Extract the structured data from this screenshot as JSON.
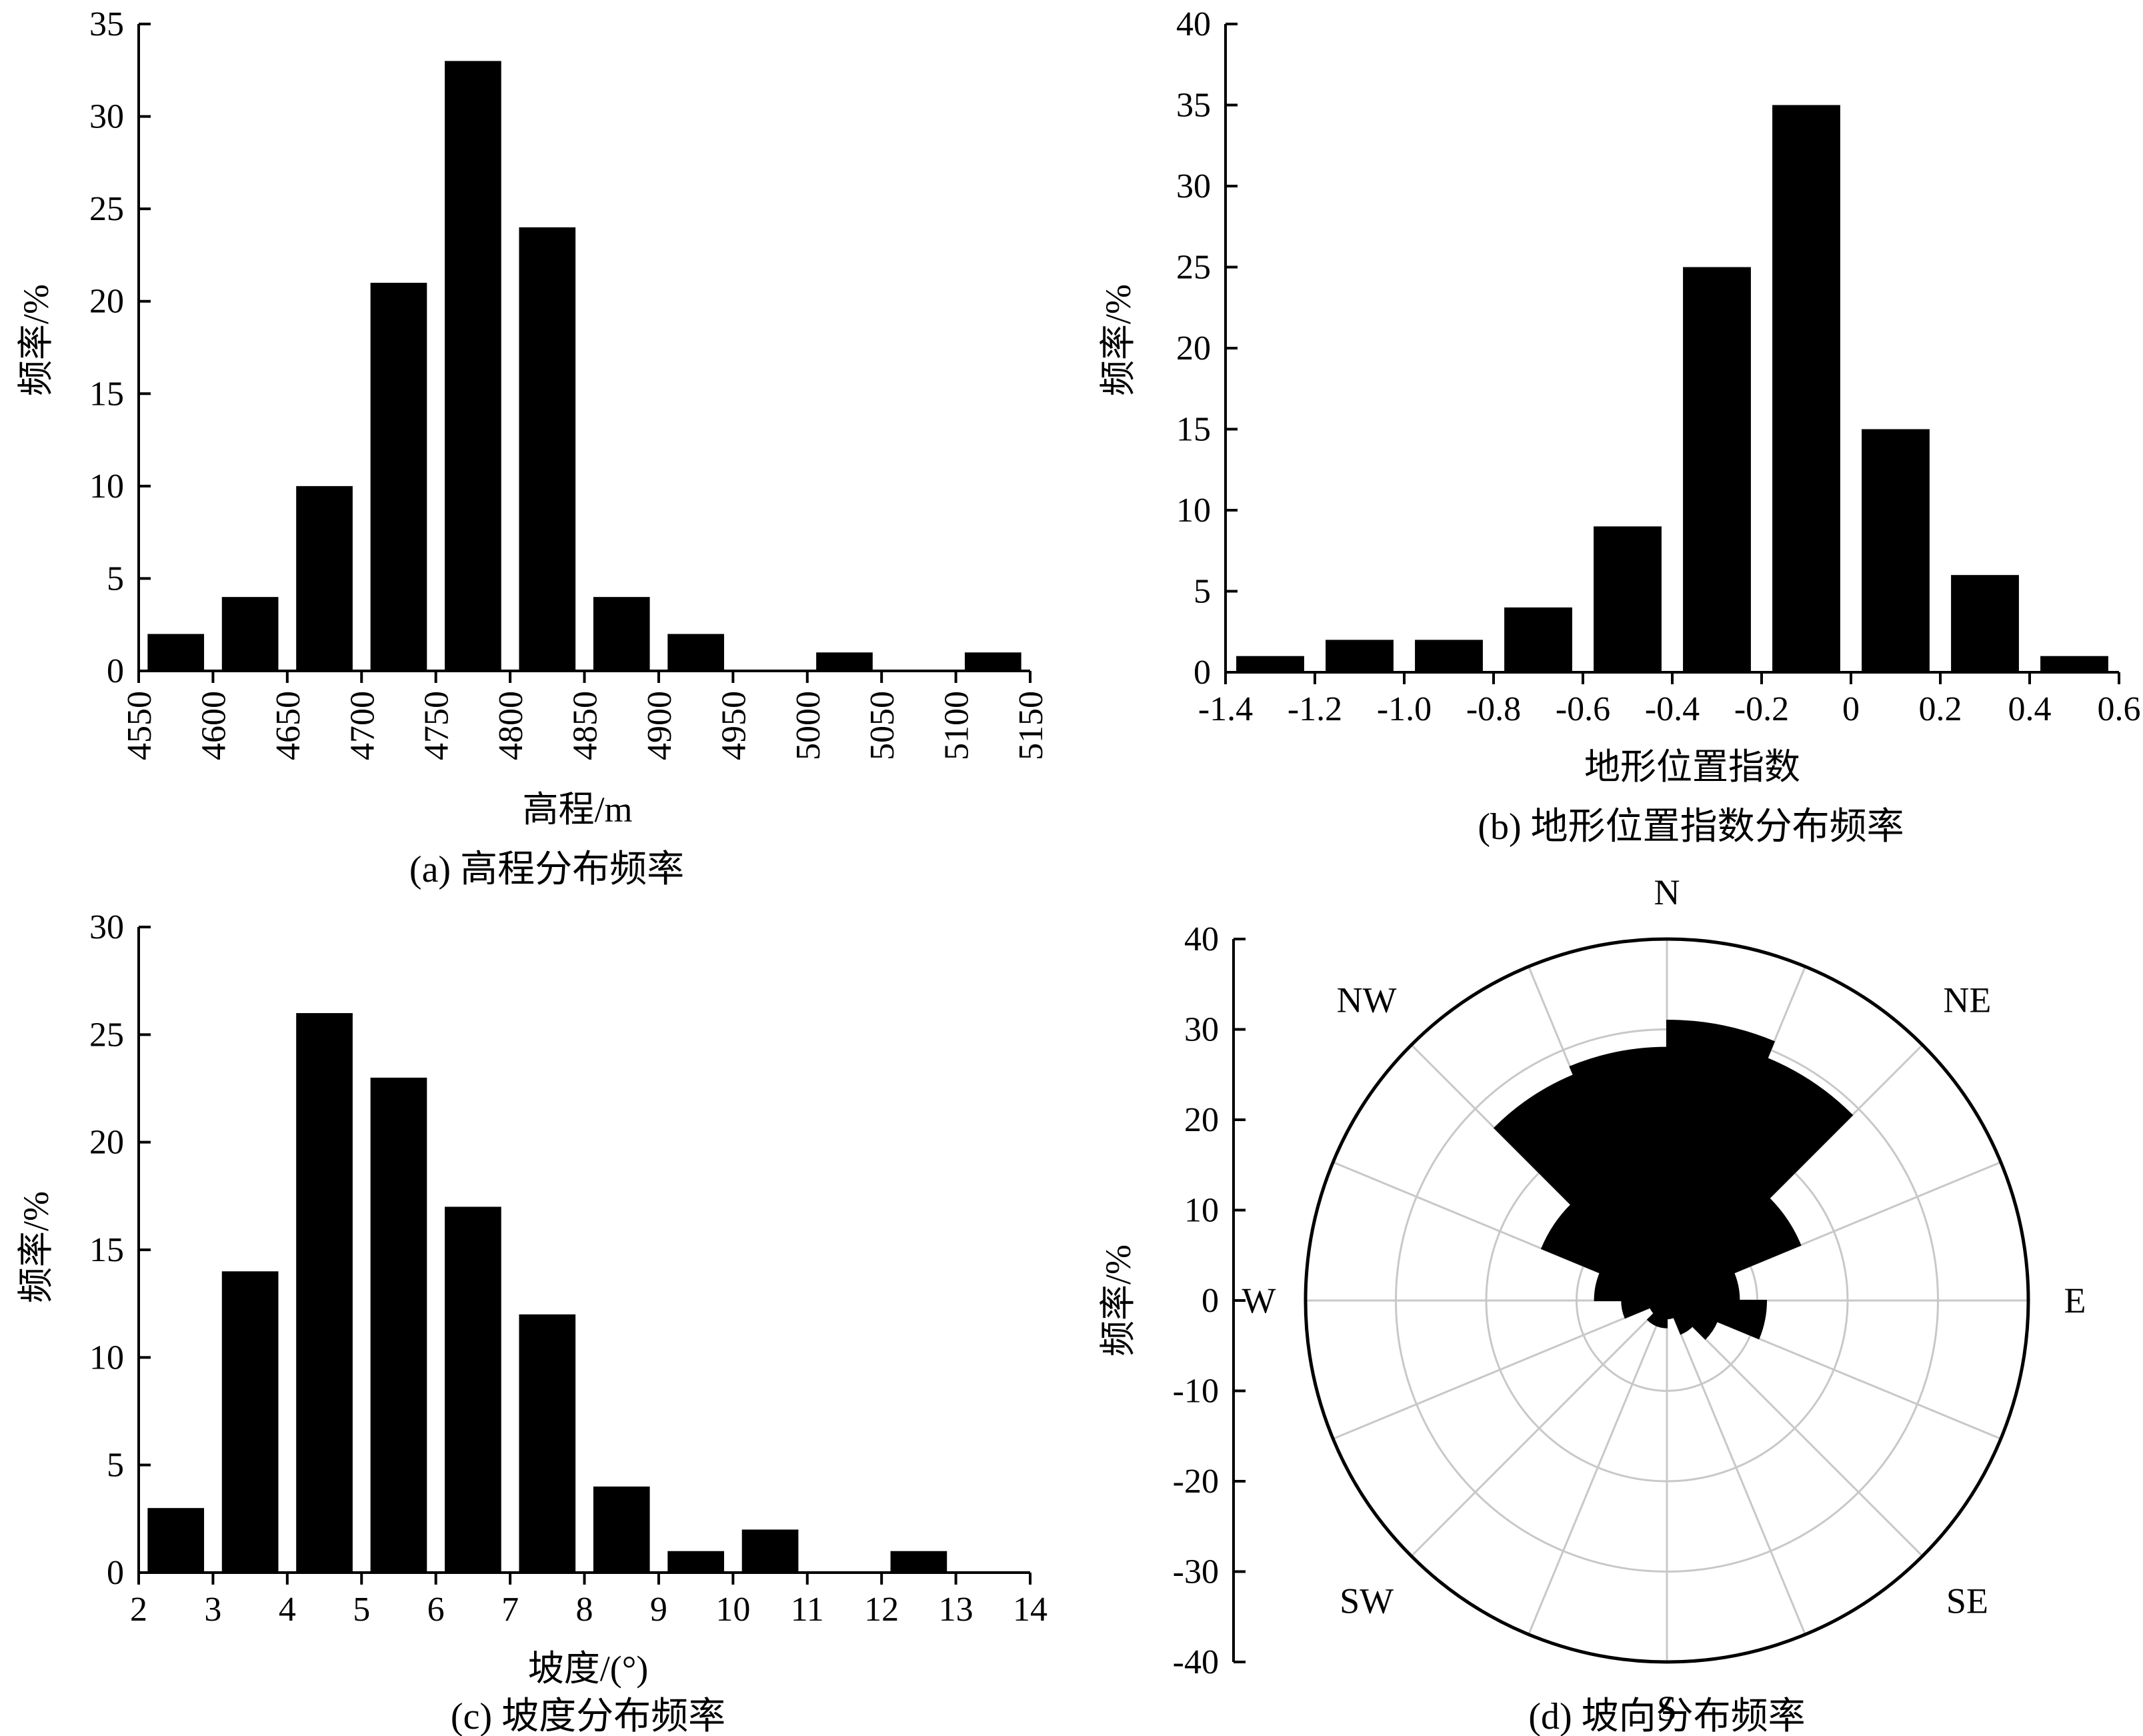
{
  "colors": {
    "bar": "#000000",
    "axis": "#000000",
    "grid": "#c8c8c8",
    "background": "#ffffff"
  },
  "chart_data": [
    {
      "id": "a",
      "type": "bar",
      "caption": "(a) 高程分布频率",
      "xlabel": "高程/m",
      "ylabel": "频率/%",
      "ylim": [
        0,
        35
      ],
      "yticks": [
        "0",
        "5",
        "10",
        "15",
        "20",
        "25",
        "30",
        "35"
      ],
      "xlim": [
        4550,
        5150
      ],
      "xticks": [
        "4550",
        "4600",
        "4650",
        "4700",
        "4750",
        "4800",
        "4850",
        "4900",
        "4950",
        "5000",
        "5050",
        "5100",
        "5150"
      ],
      "bin_width": 50,
      "bars": [
        {
          "x": 4575,
          "value": 2
        },
        {
          "x": 4625,
          "value": 4
        },
        {
          "x": 4675,
          "value": 10
        },
        {
          "x": 4725,
          "value": 21
        },
        {
          "x": 4775,
          "value": 33
        },
        {
          "x": 4825,
          "value": 24
        },
        {
          "x": 4875,
          "value": 4
        },
        {
          "x": 4925,
          "value": 2
        },
        {
          "x": 4975,
          "value": 0
        },
        {
          "x": 5025,
          "value": 1
        },
        {
          "x": 5075,
          "value": 0
        },
        {
          "x": 5125,
          "value": 1
        }
      ]
    },
    {
      "id": "b",
      "type": "bar",
      "caption": "(b) 地形位置指数分布频率",
      "xlabel": "地形位置指数",
      "ylabel": "频率/%",
      "ylim": [
        0,
        40
      ],
      "yticks": [
        "0",
        "5",
        "10",
        "15",
        "20",
        "25",
        "30",
        "35",
        "40"
      ],
      "xlim": [
        -1.4,
        0.6
      ],
      "xticks": [
        "-1.4",
        "-1.2",
        "-1.0",
        "-0.8",
        "-0.6",
        "-0.4",
        "-0.2",
        "0",
        "0.2",
        "0.4",
        "0.6"
      ],
      "bin_width": 0.2,
      "bars": [
        {
          "x": -1.3,
          "value": 1
        },
        {
          "x": -1.1,
          "value": 2
        },
        {
          "x": -0.9,
          "value": 2
        },
        {
          "x": -0.7,
          "value": 4
        },
        {
          "x": -0.5,
          "value": 9
        },
        {
          "x": -0.3,
          "value": 25
        },
        {
          "x": -0.1,
          "value": 35
        },
        {
          "x": 0.1,
          "value": 15
        },
        {
          "x": 0.3,
          "value": 6
        },
        {
          "x": 0.5,
          "value": 1
        }
      ]
    },
    {
      "id": "c",
      "type": "bar",
      "caption": "(c) 坡度分布频率",
      "xlabel": "坡度/(°)",
      "ylabel": "频率/%",
      "ylim": [
        0,
        30
      ],
      "yticks": [
        "0",
        "5",
        "10",
        "15",
        "20",
        "25",
        "30"
      ],
      "xlim": [
        2,
        14
      ],
      "xticks": [
        "2",
        "3",
        "4",
        "5",
        "6",
        "7",
        "8",
        "9",
        "10",
        "11",
        "12",
        "13",
        "14"
      ],
      "bin_width": 1,
      "bars": [
        {
          "x": 2.5,
          "value": 3
        },
        {
          "x": 3.5,
          "value": 14
        },
        {
          "x": 4.5,
          "value": 26
        },
        {
          "x": 5.5,
          "value": 23
        },
        {
          "x": 6.5,
          "value": 17
        },
        {
          "x": 7.5,
          "value": 12
        },
        {
          "x": 8.5,
          "value": 4
        },
        {
          "x": 9.5,
          "value": 1
        },
        {
          "x": 10.5,
          "value": 2
        },
        {
          "x": 11.5,
          "value": 0
        },
        {
          "x": 12.5,
          "value": 1
        },
        {
          "x": 13.5,
          "value": 0
        }
      ]
    },
    {
      "id": "d",
      "type": "polar-bar",
      "caption": "(d) 坡向分布频率",
      "ylabel": "频率/%",
      "rmax": 40,
      "ring_step": 10,
      "yticks": [
        "40",
        "30",
        "20",
        "10",
        "0",
        "-10",
        "-20",
        "-30",
        "-40"
      ],
      "directions": [
        "N",
        "NE",
        "E",
        "SE",
        "S",
        "SW",
        "W",
        "NW"
      ],
      "sector_width_deg": 22.5,
      "sectors": [
        {
          "start_deg": 0,
          "value": 31
        },
        {
          "start_deg": 22.5,
          "value": 29
        },
        {
          "start_deg": 45,
          "value": 16
        },
        {
          "start_deg": 67.5,
          "value": 8
        },
        {
          "start_deg": 90,
          "value": 11
        },
        {
          "start_deg": 112.5,
          "value": 6
        },
        {
          "start_deg": 135,
          "value": 4
        },
        {
          "start_deg": 157.5,
          "value": 2
        },
        {
          "start_deg": 180,
          "value": 3
        },
        {
          "start_deg": 202.5,
          "value": 3
        },
        {
          "start_deg": 225,
          "value": 2
        },
        {
          "start_deg": 247.5,
          "value": 5
        },
        {
          "start_deg": 270,
          "value": 8
        },
        {
          "start_deg": 292.5,
          "value": 15
        },
        {
          "start_deg": 315,
          "value": 27
        },
        {
          "start_deg": 337.5,
          "value": 28
        }
      ]
    }
  ]
}
